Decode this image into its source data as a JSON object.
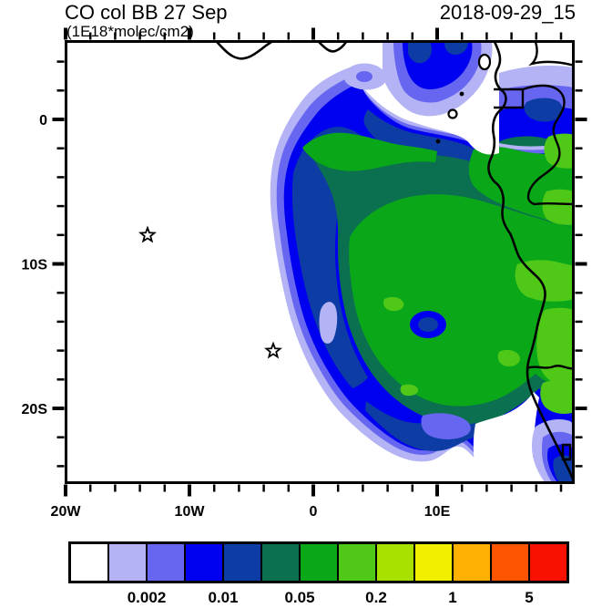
{
  "header": {
    "title": "CO col BB 27 Sep",
    "units": "(1E18*molec/cm2)",
    "datetime": "2018-09-29_15"
  },
  "axes": {
    "x_tick_labels": [
      "20W",
      "10W",
      "0",
      "10E"
    ],
    "y_tick_labels": [
      "0",
      "10S",
      "20S"
    ]
  },
  "palette": {
    "white": "#ffffff",
    "lavender": "#b3b3f5",
    "violet": "#6666f0",
    "blue": "#0000f0",
    "navy": "#0c3ca4",
    "teal": "#0a7050",
    "green": "#0aa818",
    "lime": "#50c818",
    "yellow_green": "#a8e000",
    "yellow": "#f0f000",
    "orange": "#ffb000",
    "orange_red": "#fc5400",
    "red": "#f81000",
    "line": "#000000"
  },
  "colorbar": {
    "colors": [
      "#ffffff",
      "#b3b3f5",
      "#6666f0",
      "#0000f0",
      "#0c3ca4",
      "#0a7050",
      "#0aa818",
      "#50c818",
      "#a8e000",
      "#f0f000",
      "#ffb000",
      "#fc5400",
      "#f81000"
    ],
    "tick_labels": [
      {
        "text": "0.002",
        "boundary": 2
      },
      {
        "text": "0.01",
        "boundary": 4
      },
      {
        "text": "0.05",
        "boundary": 6
      },
      {
        "text": "0.2",
        "boundary": 8
      },
      {
        "text": "1",
        "boundary": 10
      },
      {
        "text": "5",
        "boundary": 12
      }
    ]
  },
  "chart_data": {
    "type": "heatmap",
    "title": "CO col BB 27 Sep",
    "subtitle": "(1E18*molec/cm2)",
    "timestamp": "2018-09-29_15",
    "projection": "lon-lat filled contour map",
    "x_tick_labels": [
      "20W",
      "10W",
      "0",
      "10E"
    ],
    "y_tick_labels": [
      "0",
      "10S",
      "20S"
    ],
    "lon_range_deg": [
      -20,
      21
    ],
    "lat_range_deg": [
      -25.2,
      5.4
    ],
    "minor_tick_step_deg": 2,
    "major_tick_step_deg": 10,
    "contour_levels": [
      0.001,
      0.002,
      0.005,
      0.01,
      0.02,
      0.05,
      0.1,
      0.2,
      0.5,
      1,
      2,
      5
    ],
    "labeled_levels": [
      "0.002",
      "0.01",
      "0.05",
      "0.2",
      "1",
      "5"
    ],
    "n_color_bins": 13,
    "bin_colors": [
      "#ffffff",
      "#b3b3f5",
      "#6666f0",
      "#0000f0",
      "#0c3ca4",
      "#0a7050",
      "#0aa818",
      "#50c818",
      "#a8e000",
      "#f0f000",
      "#ffb000",
      "#fc5400",
      "#f81000"
    ],
    "max_level_on_map": "0.5 (lime bin; yellow/orange/red bins unused)",
    "legend_position": "bottom",
    "grid": false,
    "markers": [
      {
        "type": "star",
        "lon_deg": -13.5,
        "lat_deg": -8.0
      },
      {
        "type": "star",
        "lon_deg": -3.0,
        "lat_deg": -16.0
      }
    ],
    "features": [
      "CO biomass-burning plume over SE Atlantic off Angola/Congo coast",
      "coastline of west-central Africa with country borders",
      "islands in Gulf of Guinea (Bioko, Principe, Sao Tome, Annobon)"
    ]
  }
}
